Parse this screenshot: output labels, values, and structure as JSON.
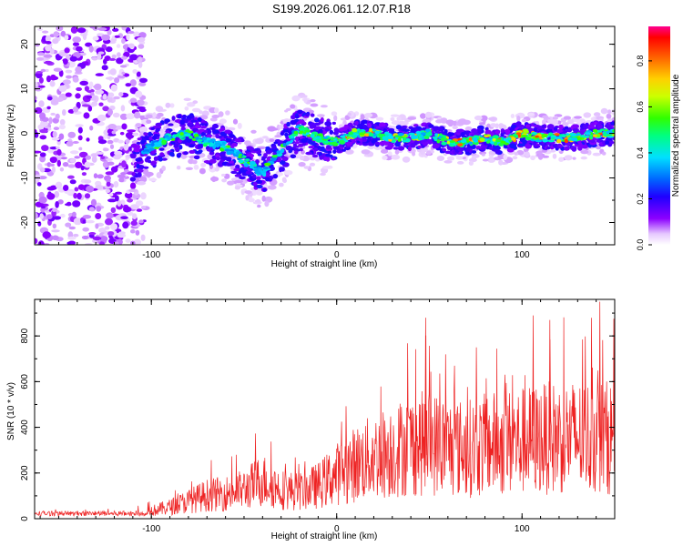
{
  "title": "S199.2026.061.12.07.R18",
  "chart_data": [
    {
      "type": "heatmap",
      "xlabel": "Height of straight line (km)",
      "ylabel": "Frequency (Hz)",
      "xlim": [
        -163,
        150
      ],
      "ylim": [
        -25,
        24
      ],
      "xticks": [
        -100,
        0,
        100
      ],
      "xtick_labels": [
        "-100",
        "0",
        "100"
      ],
      "yticks": [
        -20,
        -10,
        0,
        10,
        20
      ],
      "ytick_labels": [
        "-20",
        "-10",
        "0",
        "10",
        "20"
      ],
      "ridge": {
        "x": [
          -110,
          -100,
          -90,
          -80,
          -70,
          -60,
          -50,
          -40,
          -30,
          -20,
          -10,
          0,
          10,
          20,
          30,
          40,
          50,
          60,
          70,
          80,
          90,
          100,
          110,
          120,
          130,
          140,
          150
        ],
        "y": [
          -6,
          -3,
          -1,
          0,
          -2,
          -3,
          -6,
          -9,
          -4,
          1,
          -1,
          -2,
          0,
          0,
          -1,
          -1,
          0,
          -2,
          -2,
          -1,
          -2,
          0,
          -1,
          -1,
          -1,
          0,
          0
        ]
      },
      "colorbar": {
        "label": "Normalized spectral amplitude",
        "range": [
          0.0,
          0.95
        ],
        "ticks": [
          0.0,
          0.2,
          0.4,
          0.6,
          0.8
        ],
        "tick_labels": [
          "0.0",
          "0.2",
          "0.4",
          "0.6",
          "0.8"
        ]
      }
    },
    {
      "type": "line",
      "color": "#ee2222",
      "xlabel": "Height of straight line (km)",
      "ylabel": "SNR (10 * v/v)",
      "xlim": [
        -163,
        150
      ],
      "ylim": [
        0,
        960
      ],
      "xticks": [
        -100,
        0,
        100
      ],
      "xtick_labels": [
        "-100",
        "0",
        "100"
      ],
      "yticks": [
        0,
        200,
        400,
        600,
        800
      ],
      "ytick_labels": [
        "0",
        "200",
        "400",
        "600",
        "800"
      ],
      "envelope": {
        "x": [
          -163,
          -120,
          -100,
          -90,
          -80,
          -70,
          -60,
          -50,
          -40,
          -30,
          -20,
          -10,
          0,
          10,
          20,
          30,
          40,
          50,
          60,
          70,
          80,
          90,
          100,
          110,
          120,
          130,
          140,
          150
        ],
        "y": [
          20,
          25,
          40,
          60,
          90,
          120,
          130,
          150,
          200,
          150,
          140,
          170,
          230,
          280,
          320,
          350,
          380,
          390,
          370,
          360,
          380,
          390,
          400,
          410,
          420,
          420,
          420,
          420
        ]
      },
      "notable_peaks": [
        {
          "x": 48,
          "y": 880
        },
        {
          "x": 106,
          "y": 890
        },
        {
          "x": 115,
          "y": 870
        },
        {
          "x": 142,
          "y": 950
        }
      ]
    }
  ]
}
